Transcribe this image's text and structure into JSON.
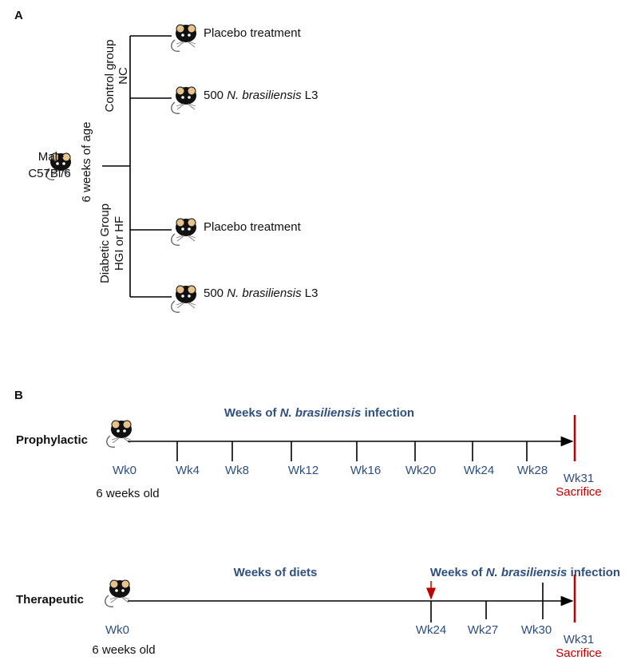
{
  "panel_a": {
    "label": "A",
    "animal": {
      "line1": "Male",
      "line2": "C57Bl/6"
    },
    "age": "6 weeks of age",
    "groups": [
      {
        "name": "Control group",
        "code": "NC",
        "treatments": [
          {
            "label": "Placebo treatment"
          },
          {
            "dose": "500",
            "species": "N. brasiliensis",
            "stage": "L3"
          }
        ]
      },
      {
        "name": "Diabetic Group",
        "code": "HGI or HF",
        "treatments": [
          {
            "label": "Placebo treatment"
          },
          {
            "dose": "500",
            "species": "N. brasiliensis",
            "stage": "L3"
          }
        ]
      }
    ]
  },
  "panel_b": {
    "label": "B",
    "protocols": [
      {
        "name": "Prophylactic",
        "start": "Wk0",
        "start_note": "6 weeks old",
        "headers": [
          {
            "prefix": "Weeks of",
            "species": "N. brasiliensis",
            "suffix": "infection"
          }
        ],
        "weeks": [
          "Wk4",
          "Wk8",
          "Wk12",
          "Wk16",
          "Wk20",
          "Wk24",
          "Wk28"
        ],
        "end": "Wk31",
        "end_note": "Sacrifice"
      },
      {
        "name": "Therapeutic",
        "start": "Wk0",
        "start_note": "6 weeks old",
        "headers": [
          {
            "text": "Weeks of diets"
          },
          {
            "prefix": "Weeks of",
            "species": "N. brasiliensis",
            "suffix": "infection"
          }
        ],
        "weeks": [
          "Wk24",
          "Wk27",
          "Wk30"
        ],
        "end": "Wk31",
        "end_note": "Sacrifice"
      }
    ]
  }
}
